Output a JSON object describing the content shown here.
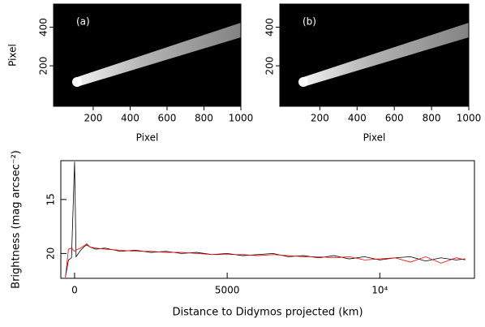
{
  "chart_data": [
    {
      "type": "image",
      "label": "(a)",
      "xlabel": "Pixel",
      "ylabel": "Pixel",
      "xlim": [
        -15,
        1000
      ],
      "xticks": [
        200,
        400,
        600,
        800,
        1000
      ],
      "ylim": [
        -10,
        520
      ],
      "yticks": [
        200,
        400
      ]
    },
    {
      "type": "image",
      "label": "(b)",
      "xlabel": "Pixel",
      "xlim": [
        -15,
        1000
      ],
      "xticks": [
        200,
        400,
        600,
        800,
        1000
      ],
      "ylim": [
        -10,
        520
      ],
      "yticks": [
        200,
        400
      ]
    },
    {
      "type": "line",
      "xlabel": "Distance to Didymos projected (km)",
      "ylabel": "Brightness (mag arcsec⁻²)",
      "xlim": [
        -450,
        13100
      ],
      "xticks": [
        0,
        5000,
        {
          "value": 10000,
          "label": "10⁴"
        }
      ],
      "ylim": [
        22.3,
        11.4
      ],
      "yticks": [
        15,
        20
      ],
      "x": [
        -300,
        -200,
        -100,
        0,
        50,
        100,
        200,
        300,
        400,
        500,
        700,
        1000,
        1500,
        2000,
        2500,
        3000,
        3500,
        4000,
        4500,
        5000,
        5500,
        6000,
        6500,
        7000,
        7500,
        8000,
        8500,
        9000,
        9500,
        10000,
        10500,
        11000,
        11500,
        12000,
        12500,
        12800
      ],
      "series": [
        {
          "color": "#000000",
          "values": [
            22.2,
            20.6,
            20.4,
            11.5,
            20.3,
            20.1,
            19.7,
            19.4,
            19.2,
            19.4,
            19.6,
            19.5,
            19.8,
            19.7,
            19.9,
            19.8,
            20.0,
            19.9,
            20.1,
            20.0,
            20.2,
            20.1,
            20.0,
            20.3,
            20.2,
            20.4,
            20.2,
            20.5,
            20.3,
            20.6,
            20.4,
            20.3,
            20.7,
            20.4,
            20.6,
            20.5
          ]
        },
        {
          "color": "#ff0000",
          "values": [
            22.2,
            19.6,
            19.5,
            19.8,
            19.7,
            19.6,
            19.5,
            19.3,
            19.1,
            19.4,
            19.5,
            19.6,
            19.7,
            19.8,
            19.8,
            19.9,
            19.9,
            20.0,
            20.1,
            20.1,
            20.1,
            20.2,
            20.1,
            20.2,
            20.3,
            20.3,
            20.4,
            20.3,
            20.6,
            20.5,
            20.4,
            20.8,
            20.3,
            20.9,
            20.4,
            20.6
          ]
        }
      ]
    }
  ]
}
